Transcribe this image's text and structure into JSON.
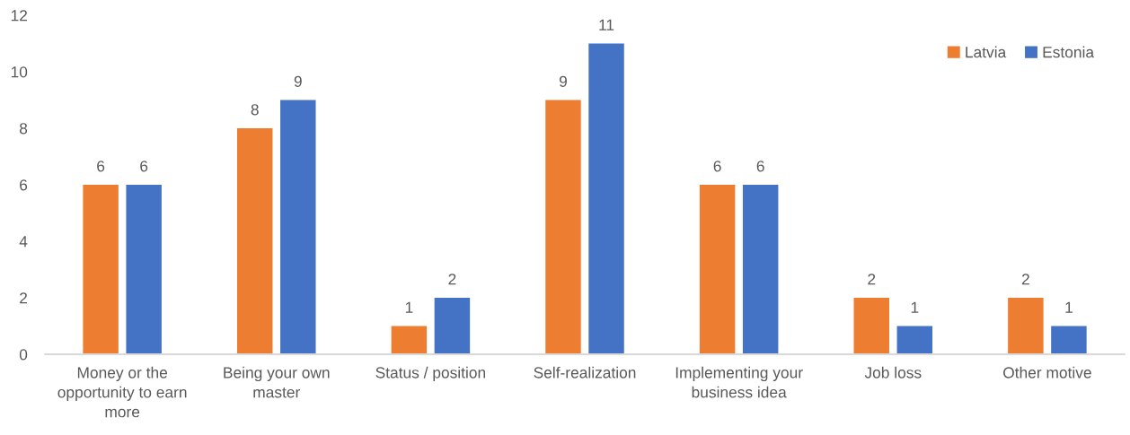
{
  "chart_data": {
    "type": "bar",
    "categories": [
      "Money or the opportunity to earn more",
      "Being your own master",
      "Status / position",
      "Self-realization",
      "Implementing your business idea",
      "Job loss",
      "Other motive"
    ],
    "series": [
      {
        "name": "Latvia",
        "color": "#ed7d31",
        "values": [
          6,
          8,
          1,
          9,
          6,
          2,
          2
        ]
      },
      {
        "name": "Estonia",
        "color": "#4472c4",
        "values": [
          6,
          9,
          2,
          11,
          6,
          1,
          1
        ]
      }
    ],
    "ylim": [
      0,
      12
    ],
    "yticks": [
      0,
      2,
      4,
      6,
      8,
      10,
      12
    ],
    "grid": false,
    "legend": "top right",
    "data_labels": true
  }
}
